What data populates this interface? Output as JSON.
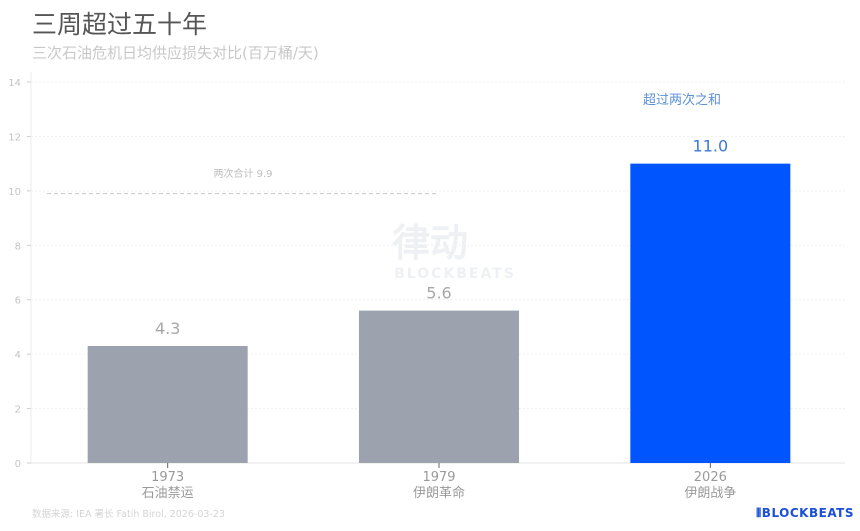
{
  "title": "三周超过五十年",
  "subtitle": "三次石油危机日均供应损失对比(百万桶/天)",
  "source": "数据来源: IEA 署长 Fatih Birol, 2026-03-23",
  "logo": "BLOCKBEATS",
  "watermark": "律动 BLOCKBEATS",
  "chart_data": {
    "type": "bar",
    "categories": [
      "1973\n石油禁运",
      "1979\n伊朗革命",
      "2026\n伊朗战争"
    ],
    "category_years": [
      "1973",
      "1979",
      "2026"
    ],
    "category_names": [
      "石油禁运",
      "伊朗革命",
      "伊朗战争"
    ],
    "values": [
      4.3,
      5.6,
      11.0
    ],
    "value_labels": [
      "4.3",
      "5.6",
      "11.0"
    ],
    "colors": [
      "#9ca3ae",
      "#9ca3ae",
      "#0055ff"
    ],
    "ylim": [
      0,
      14
    ],
    "yticks": [
      0,
      2,
      4,
      6,
      8,
      10,
      12,
      14
    ],
    "grid": true,
    "reference_line": {
      "value": 9.9,
      "label": "两次合计 9.9",
      "style": "dashed"
    },
    "annotation": {
      "text": "超过两次之和",
      "color": "#5b8fd6"
    },
    "xlabel": "",
    "ylabel": ""
  }
}
